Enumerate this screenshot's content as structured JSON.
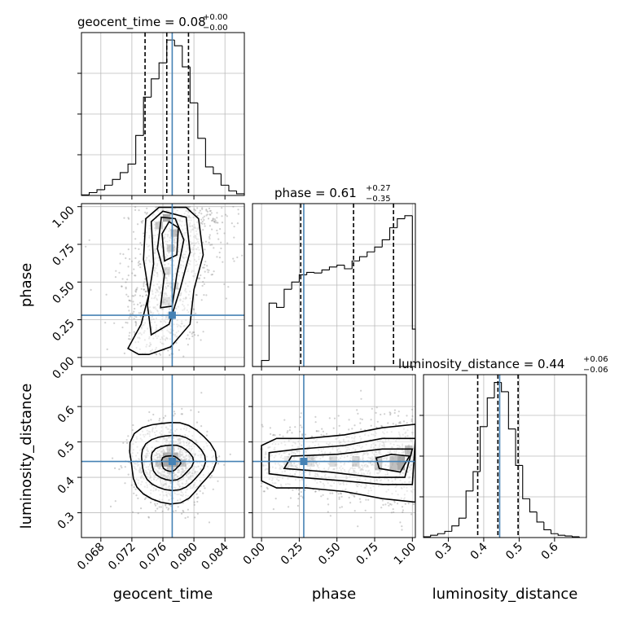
{
  "chart_data": {
    "type": "corner",
    "parameters": [
      "geocent_time",
      "phase",
      "luminosity_distance"
    ],
    "truths": {
      "geocent_time": 0.0772,
      "phase": 0.28,
      "luminosity_distance": 0.445
    },
    "colors": {
      "truth": "#4682b4",
      "hist": "#000000",
      "grid": "#bbbbbb",
      "density": "#000000"
    },
    "grid": true,
    "panels": [
      {
        "name": "geocent_time",
        "title_main": "geocent_time = 0.08",
        "title_plus": "+0.00",
        "title_minus": "−0.00",
        "range": [
          0.0655,
          0.0865
        ],
        "quantiles": [
          0.0737,
          0.0765,
          0.0793
        ],
        "bins_edges": [
          0.0655,
          0.0665,
          0.0675,
          0.0685,
          0.0695,
          0.0705,
          0.0715,
          0.0725,
          0.0735,
          0.0745,
          0.0755,
          0.0765,
          0.0775,
          0.0785,
          0.0795,
          0.0805,
          0.0815,
          0.0825,
          0.0835,
          0.0845,
          0.0855,
          0.0865
        ],
        "hist_values": [
          1,
          5,
          10,
          18,
          28,
          40,
          55,
          105,
          172,
          204,
          232,
          272,
          262,
          225,
          162,
          100,
          50,
          38,
          18,
          8,
          3
        ],
        "ymax": 285
      },
      {
        "name": "phase",
        "title_main": "phase = 0.61",
        "title_plus": "+0.27",
        "title_minus": "−0.35",
        "range": [
          -0.06,
          1.02
        ],
        "quantiles": [
          0.26,
          0.61,
          0.875
        ],
        "bins_edges": [
          -0.06,
          0.0,
          0.05,
          0.1,
          0.15,
          0.2,
          0.25,
          0.3,
          0.35,
          0.4,
          0.45,
          0.5,
          0.55,
          0.6,
          0.65,
          0.7,
          0.75,
          0.8,
          0.85,
          0.9,
          0.95,
          1.0,
          1.02
        ],
        "hist_values": [
          0,
          10,
          105,
          98,
          128,
          140,
          152,
          156,
          155,
          160,
          165,
          168,
          162,
          175,
          182,
          190,
          198,
          210,
          230,
          245,
          250,
          62
        ],
        "ymax": 270
      },
      {
        "name": "luminosity_distance",
        "title_main": "luminosity_distance = 0.44",
        "title_plus": "+0.06",
        "title_minus": "−0.06",
        "range": [
          0.23,
          0.69
        ],
        "quantiles": [
          0.383,
          0.44,
          0.497
        ],
        "bins_edges": [
          0.23,
          0.25,
          0.27,
          0.29,
          0.31,
          0.33,
          0.35,
          0.37,
          0.39,
          0.41,
          0.43,
          0.45,
          0.47,
          0.49,
          0.51,
          0.53,
          0.55,
          0.57,
          0.59,
          0.61,
          0.63,
          0.65,
          0.67,
          0.69
        ],
        "hist_values": [
          1,
          3,
          5,
          8,
          15,
          25,
          60,
          85,
          143,
          180,
          200,
          188,
          140,
          93,
          50,
          33,
          20,
          10,
          5,
          3,
          2,
          1,
          0
        ],
        "ymax": 210
      }
    ],
    "ticks": {
      "geocent_time": [
        "0.068",
        "0.072",
        "0.076",
        "0.080",
        "0.084"
      ],
      "phase": [
        "0.00",
        "0.25",
        "0.50",
        "0.75",
        "1.00"
      ],
      "luminosity_distance": [
        "0.3",
        "0.4",
        "0.5",
        "0.6"
      ],
      "luminosity_distance_y": [
        "0.3",
        "0.4",
        "0.5",
        "0.6"
      ]
    },
    "tick_values": {
      "geocent_time": [
        0.068,
        0.072,
        0.076,
        0.08,
        0.084
      ],
      "phase": [
        0.0,
        0.25,
        0.5,
        0.75,
        1.0
      ],
      "luminosity_distance": [
        0.3,
        0.4,
        0.5,
        0.6
      ]
    },
    "axis_labels": {
      "x_left": "geocent_time",
      "x_mid": "phase",
      "x_right": "luminosity_distance",
      "y_mid": "phase",
      "y_bottom": "luminosity_distance"
    }
  }
}
